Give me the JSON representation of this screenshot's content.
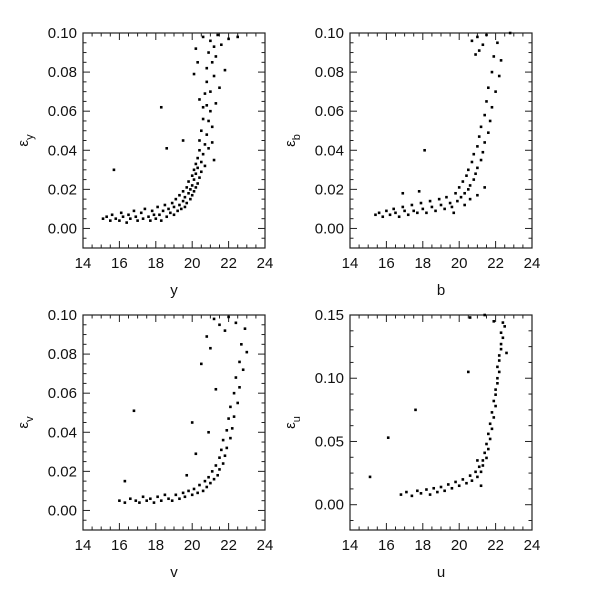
{
  "figure": {
    "background": "#ffffff",
    "ink": "#000000"
  },
  "chart_data": [
    {
      "type": "scatter",
      "title": "",
      "xlabel": "y",
      "ylabel": "ε",
      "ylabel_sub": "y",
      "xlim": [
        14,
        24
      ],
      "ylim": [
        -0.01,
        0.1
      ],
      "xticks": [
        14,
        16,
        18,
        20,
        22,
        24
      ],
      "xtick_labels": [
        "14",
        "16",
        "18",
        "20",
        "22",
        "24"
      ],
      "yticks": [
        0.0,
        0.02,
        0.04,
        0.06,
        0.08,
        0.1
      ],
      "ytick_labels": [
        "0.00",
        "0.02",
        "0.04",
        "0.06",
        "0.08",
        "0.10"
      ],
      "grid": false,
      "points": [
        [
          15.1,
          0.005
        ],
        [
          15.3,
          0.006
        ],
        [
          15.5,
          0.004
        ],
        [
          15.6,
          0.007
        ],
        [
          15.8,
          0.005
        ],
        [
          16.0,
          0.004
        ],
        [
          16.1,
          0.008
        ],
        [
          16.2,
          0.006
        ],
        [
          16.4,
          0.003
        ],
        [
          16.5,
          0.007
        ],
        [
          16.6,
          0.005
        ],
        [
          16.8,
          0.009
        ],
        [
          16.9,
          0.006
        ],
        [
          17.0,
          0.004
        ],
        [
          17.2,
          0.008
        ],
        [
          17.3,
          0.005
        ],
        [
          17.4,
          0.01
        ],
        [
          17.6,
          0.006
        ],
        [
          17.7,
          0.004
        ],
        [
          17.8,
          0.009
        ],
        [
          17.9,
          0.007
        ],
        [
          18.0,
          0.005
        ],
        [
          18.1,
          0.011
        ],
        [
          18.2,
          0.007
        ],
        [
          18.3,
          0.004
        ],
        [
          18.4,
          0.009
        ],
        [
          18.5,
          0.012
        ],
        [
          18.6,
          0.006
        ],
        [
          18.7,
          0.01
        ],
        [
          18.8,
          0.008
        ],
        [
          18.9,
          0.013
        ],
        [
          19.0,
          0.007
        ],
        [
          19.0,
          0.011
        ],
        [
          19.1,
          0.015
        ],
        [
          19.2,
          0.009
        ],
        [
          19.3,
          0.012
        ],
        [
          19.3,
          0.017
        ],
        [
          19.4,
          0.01
        ],
        [
          19.5,
          0.014
        ],
        [
          19.5,
          0.019
        ],
        [
          19.6,
          0.011
        ],
        [
          19.6,
          0.016
        ],
        [
          19.7,
          0.021
        ],
        [
          19.7,
          0.013
        ],
        [
          19.8,
          0.018
        ],
        [
          19.8,
          0.024
        ],
        [
          19.9,
          0.015
        ],
        [
          19.9,
          0.02
        ],
        [
          20.0,
          0.027
        ],
        [
          20.0,
          0.017
        ],
        [
          20.0,
          0.022
        ],
        [
          20.1,
          0.03
        ],
        [
          20.1,
          0.019
        ],
        [
          20.1,
          0.025
        ],
        [
          20.2,
          0.033
        ],
        [
          20.2,
          0.021
        ],
        [
          20.2,
          0.028
        ],
        [
          20.3,
          0.036
        ],
        [
          20.3,
          0.023
        ],
        [
          20.3,
          0.031
        ],
        [
          20.4,
          0.04
        ],
        [
          20.4,
          0.026
        ],
        [
          20.4,
          0.045
        ],
        [
          20.5,
          0.034
        ],
        [
          20.5,
          0.05
        ],
        [
          20.5,
          0.029
        ],
        [
          20.6,
          0.056
        ],
        [
          20.6,
          0.038
        ],
        [
          20.6,
          0.062
        ],
        [
          20.7,
          0.043
        ],
        [
          20.7,
          0.069
        ],
        [
          20.7,
          0.032
        ],
        [
          20.8,
          0.075
        ],
        [
          20.8,
          0.048
        ],
        [
          20.8,
          0.082
        ],
        [
          20.9,
          0.055
        ],
        [
          20.9,
          0.09
        ],
        [
          20.9,
          0.041
        ],
        [
          21.0,
          0.096
        ],
        [
          21.0,
          0.06
        ],
        [
          21.0,
          0.07
        ],
        [
          21.1,
          0.085
        ],
        [
          21.1,
          0.052
        ],
        [
          21.2,
          0.078
        ],
        [
          21.2,
          0.093
        ],
        [
          21.3,
          0.064
        ],
        [
          21.3,
          0.088
        ],
        [
          21.4,
          0.099
        ],
        [
          21.5,
          0.072
        ],
        [
          21.6,
          0.094
        ],
        [
          21.8,
          0.081
        ],
        [
          22.0,
          0.097
        ],
        [
          20.2,
          0.092
        ],
        [
          20.3,
          0.085
        ],
        [
          20.1,
          0.079
        ],
        [
          20.4,
          0.066
        ],
        [
          20.6,
          0.098
        ],
        [
          20.8,
          0.063
        ],
        [
          21.1,
          0.044
        ],
        [
          21.2,
          0.035
        ],
        [
          18.3,
          0.062
        ],
        [
          15.7,
          0.03
        ],
        [
          18.6,
          0.041
        ],
        [
          19.5,
          0.045
        ],
        [
          22.5,
          0.098
        ]
      ]
    },
    {
      "type": "scatter",
      "title": "",
      "xlabel": "b",
      "ylabel": "ε",
      "ylabel_sub": "b",
      "xlim": [
        14,
        24
      ],
      "ylim": [
        -0.01,
        0.1
      ],
      "xticks": [
        14,
        16,
        18,
        20,
        22,
        24
      ],
      "xtick_labels": [
        "14",
        "16",
        "18",
        "20",
        "22",
        "24"
      ],
      "yticks": [
        0.0,
        0.02,
        0.04,
        0.06,
        0.08,
        0.1
      ],
      "ytick_labels": [
        "0.00",
        "0.02",
        "0.04",
        "0.06",
        "0.08",
        "0.10"
      ],
      "grid": false,
      "points": [
        [
          15.4,
          0.007
        ],
        [
          15.6,
          0.008
        ],
        [
          15.8,
          0.006
        ],
        [
          16.0,
          0.009
        ],
        [
          16.2,
          0.007
        ],
        [
          16.4,
          0.01
        ],
        [
          16.5,
          0.008
        ],
        [
          16.7,
          0.006
        ],
        [
          16.9,
          0.011
        ],
        [
          17.0,
          0.009
        ],
        [
          17.2,
          0.007
        ],
        [
          17.4,
          0.012
        ],
        [
          17.5,
          0.009
        ],
        [
          17.7,
          0.008
        ],
        [
          17.9,
          0.013
        ],
        [
          18.0,
          0.01
        ],
        [
          18.2,
          0.008
        ],
        [
          18.4,
          0.014
        ],
        [
          18.5,
          0.011
        ],
        [
          18.7,
          0.009
        ],
        [
          18.9,
          0.015
        ],
        [
          19.0,
          0.012
        ],
        [
          19.2,
          0.01
        ],
        [
          19.3,
          0.016
        ],
        [
          19.5,
          0.013
        ],
        [
          19.6,
          0.011
        ],
        [
          19.8,
          0.018
        ],
        [
          19.9,
          0.014
        ],
        [
          20.0,
          0.021
        ],
        [
          20.1,
          0.016
        ],
        [
          20.2,
          0.024
        ],
        [
          20.3,
          0.018
        ],
        [
          20.4,
          0.027
        ],
        [
          20.5,
          0.02
        ],
        [
          20.5,
          0.03
        ],
        [
          20.6,
          0.022
        ],
        [
          20.7,
          0.034
        ],
        [
          20.8,
          0.025
        ],
        [
          20.8,
          0.038
        ],
        [
          20.9,
          0.028
        ],
        [
          21.0,
          0.042
        ],
        [
          21.0,
          0.031
        ],
        [
          21.1,
          0.047
        ],
        [
          21.2,
          0.035
        ],
        [
          21.2,
          0.052
        ],
        [
          21.3,
          0.039
        ],
        [
          21.4,
          0.058
        ],
        [
          21.4,
          0.044
        ],
        [
          21.5,
          0.065
        ],
        [
          21.6,
          0.049
        ],
        [
          21.6,
          0.072
        ],
        [
          21.7,
          0.055
        ],
        [
          21.8,
          0.08
        ],
        [
          21.8,
          0.062
        ],
        [
          21.9,
          0.088
        ],
        [
          22.0,
          0.07
        ],
        [
          22.1,
          0.095
        ],
        [
          22.2,
          0.078
        ],
        [
          22.3,
          0.086
        ],
        [
          21.1,
          0.091
        ],
        [
          21.0,
          0.098
        ],
        [
          20.9,
          0.089
        ],
        [
          21.3,
          0.094
        ],
        [
          21.5,
          0.099
        ],
        [
          20.7,
          0.096
        ],
        [
          20.3,
          0.012
        ],
        [
          20.6,
          0.015
        ],
        [
          21.0,
          0.017
        ],
        [
          21.4,
          0.021
        ],
        [
          19.7,
          0.008
        ],
        [
          18.1,
          0.04
        ],
        [
          17.8,
          0.019
        ],
        [
          16.9,
          0.018
        ],
        [
          22.8,
          0.1
        ]
      ]
    },
    {
      "type": "scatter",
      "title": "",
      "xlabel": "v",
      "ylabel": "ε",
      "ylabel_sub": "v",
      "xlim": [
        14,
        24
      ],
      "ylim": [
        -0.01,
        0.1
      ],
      "xticks": [
        14,
        16,
        18,
        20,
        22,
        24
      ],
      "xtick_labels": [
        "14",
        "16",
        "18",
        "20",
        "22",
        "24"
      ],
      "yticks": [
        0.0,
        0.02,
        0.04,
        0.06,
        0.08,
        0.1
      ],
      "ytick_labels": [
        "0.00",
        "0.02",
        "0.04",
        "0.06",
        "0.08",
        "0.10"
      ],
      "grid": false,
      "points": [
        [
          16.0,
          0.005
        ],
        [
          16.3,
          0.004
        ],
        [
          16.6,
          0.006
        ],
        [
          16.9,
          0.005
        ],
        [
          17.1,
          0.004
        ],
        [
          17.3,
          0.007
        ],
        [
          17.5,
          0.005
        ],
        [
          17.7,
          0.006
        ],
        [
          17.9,
          0.004
        ],
        [
          18.1,
          0.007
        ],
        [
          18.3,
          0.005
        ],
        [
          18.5,
          0.008
        ],
        [
          18.7,
          0.006
        ],
        [
          18.9,
          0.005
        ],
        [
          19.1,
          0.008
        ],
        [
          19.3,
          0.006
        ],
        [
          19.5,
          0.009
        ],
        [
          19.6,
          0.007
        ],
        [
          19.8,
          0.01
        ],
        [
          20.0,
          0.008
        ],
        [
          20.1,
          0.011
        ],
        [
          20.3,
          0.009
        ],
        [
          20.4,
          0.013
        ],
        [
          20.6,
          0.01
        ],
        [
          20.7,
          0.015
        ],
        [
          20.8,
          0.012
        ],
        [
          20.9,
          0.017
        ],
        [
          21.0,
          0.014
        ],
        [
          21.1,
          0.02
        ],
        [
          21.2,
          0.016
        ],
        [
          21.3,
          0.023
        ],
        [
          21.4,
          0.018
        ],
        [
          21.5,
          0.027
        ],
        [
          21.5,
          0.021
        ],
        [
          21.6,
          0.031
        ],
        [
          21.7,
          0.024
        ],
        [
          21.7,
          0.036
        ],
        [
          21.8,
          0.028
        ],
        [
          21.9,
          0.041
        ],
        [
          21.9,
          0.032
        ],
        [
          22.0,
          0.047
        ],
        [
          22.1,
          0.037
        ],
        [
          22.1,
          0.053
        ],
        [
          22.2,
          0.042
        ],
        [
          22.3,
          0.06
        ],
        [
          22.3,
          0.048
        ],
        [
          22.4,
          0.068
        ],
        [
          22.5,
          0.055
        ],
        [
          22.6,
          0.076
        ],
        [
          22.6,
          0.063
        ],
        [
          22.7,
          0.085
        ],
        [
          22.8,
          0.072
        ],
        [
          22.9,
          0.093
        ],
        [
          23.0,
          0.081
        ],
        [
          21.2,
          0.098
        ],
        [
          21.5,
          0.095
        ],
        [
          21.8,
          0.092
        ],
        [
          22.0,
          0.099
        ],
        [
          22.4,
          0.096
        ],
        [
          20.8,
          0.089
        ],
        [
          21.0,
          0.083
        ],
        [
          20.5,
          0.075
        ],
        [
          20.9,
          0.04
        ],
        [
          20.2,
          0.029
        ],
        [
          19.7,
          0.018
        ],
        [
          16.8,
          0.051
        ],
        [
          16.3,
          0.015
        ],
        [
          20.0,
          0.045
        ],
        [
          21.3,
          0.062
        ]
      ]
    },
    {
      "type": "scatter",
      "title": "",
      "xlabel": "u",
      "ylabel": "ε",
      "ylabel_sub": "u",
      "xlim": [
        14,
        24
      ],
      "ylim": [
        -0.02,
        0.15
      ],
      "xticks": [
        14,
        16,
        18,
        20,
        22,
        24
      ],
      "xtick_labels": [
        "14",
        "16",
        "18",
        "20",
        "22",
        "24"
      ],
      "yticks": [
        0.0,
        0.05,
        0.1,
        0.15
      ],
      "ytick_labels": [
        "0.00",
        "0.05",
        "0.10",
        "0.15"
      ],
      "grid": false,
      "points": [
        [
          16.8,
          0.008
        ],
        [
          17.1,
          0.01
        ],
        [
          17.4,
          0.007
        ],
        [
          17.7,
          0.011
        ],
        [
          17.9,
          0.009
        ],
        [
          18.2,
          0.012
        ],
        [
          18.4,
          0.008
        ],
        [
          18.6,
          0.013
        ],
        [
          18.8,
          0.01
        ],
        [
          19.0,
          0.014
        ],
        [
          19.2,
          0.011
        ],
        [
          19.4,
          0.016
        ],
        [
          19.6,
          0.013
        ],
        [
          19.8,
          0.018
        ],
        [
          20.0,
          0.015
        ],
        [
          20.2,
          0.02
        ],
        [
          20.4,
          0.017
        ],
        [
          20.6,
          0.023
        ],
        [
          20.7,
          0.019
        ],
        [
          20.9,
          0.026
        ],
        [
          21.0,
          0.022
        ],
        [
          21.1,
          0.03
        ],
        [
          21.2,
          0.026
        ],
        [
          21.3,
          0.035
        ],
        [
          21.3,
          0.031
        ],
        [
          21.4,
          0.041
        ],
        [
          21.5,
          0.037
        ],
        [
          21.5,
          0.048
        ],
        [
          21.6,
          0.044
        ],
        [
          21.6,
          0.056
        ],
        [
          21.7,
          0.052
        ],
        [
          21.7,
          0.064
        ],
        [
          21.8,
          0.06
        ],
        [
          21.8,
          0.073
        ],
        [
          21.9,
          0.069
        ],
        [
          21.9,
          0.082
        ],
        [
          22.0,
          0.078
        ],
        [
          22.0,
          0.091
        ],
        [
          22.0,
          0.087
        ],
        [
          22.1,
          0.1
        ],
        [
          22.1,
          0.096
        ],
        [
          22.1,
          0.109
        ],
        [
          22.2,
          0.105
        ],
        [
          22.2,
          0.118
        ],
        [
          22.2,
          0.114
        ],
        [
          22.3,
          0.127
        ],
        [
          22.3,
          0.123
        ],
        [
          22.3,
          0.136
        ],
        [
          22.4,
          0.132
        ],
        [
          22.4,
          0.144
        ],
        [
          22.5,
          0.141
        ],
        [
          21.4,
          0.15
        ],
        [
          20.6,
          0.148
        ],
        [
          17.6,
          0.075
        ],
        [
          16.1,
          0.053
        ],
        [
          15.1,
          0.022
        ],
        [
          21.2,
          0.015
        ],
        [
          21.0,
          0.035
        ],
        [
          20.5,
          0.105
        ],
        [
          22.6,
          0.12
        ],
        [
          21.9,
          0.145
        ]
      ]
    }
  ]
}
